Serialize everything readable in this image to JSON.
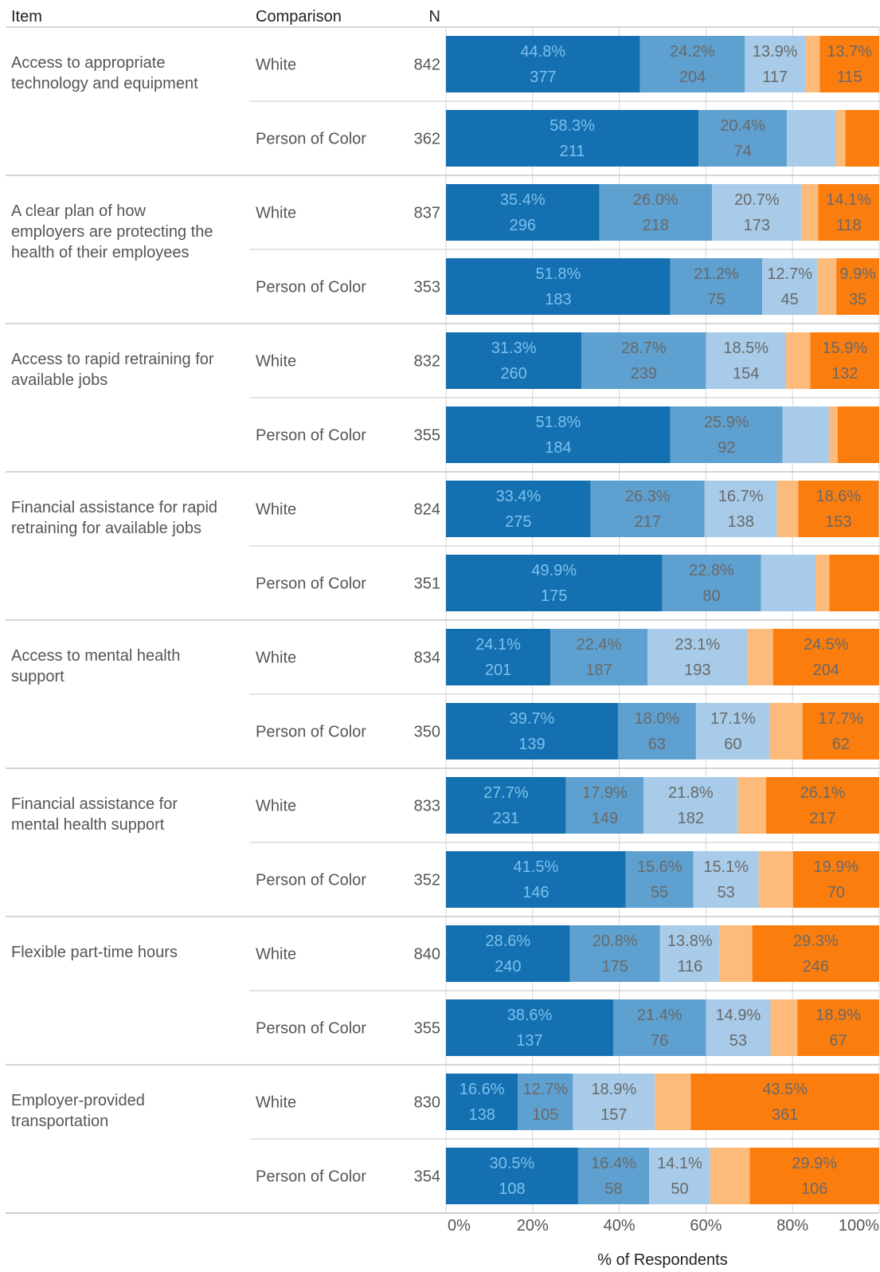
{
  "header": {
    "item": "Item",
    "comparison": "Comparison",
    "n": "N"
  },
  "colors": {
    "segments": [
      "#1470b0",
      "#5ea0cf",
      "#a7cbe8",
      "#fcbb7a",
      "#fb7d0e"
    ],
    "label_on_dark": "#7cc0ee",
    "label_on_light": "#696969",
    "gridline": "#d6d6d6",
    "divider": "#c8c8c8",
    "text": "#555555",
    "header_text": "#222222"
  },
  "chart_data": {
    "type": "bar",
    "orientation": "horizontal",
    "stacked": true,
    "xlabel": "% of Respondents",
    "xlim": [
      0,
      100
    ],
    "xticks": [
      "0%",
      "20%",
      "40%",
      "60%",
      "80%",
      "100%"
    ],
    "grid": true,
    "groups": [
      {
        "item": "Access to appropriate technology and equipment",
        "item_lines": [
          "Access to appropriate",
          "technology and equipment"
        ],
        "rows": [
          {
            "comparison": "White",
            "n": "842",
            "segments": [
              {
                "value": 44.8,
                "pct": "44.8%",
                "count": "377"
              },
              {
                "value": 24.2,
                "pct": "24.2%",
                "count": "204"
              },
              {
                "value": 13.9,
                "pct": "13.9%",
                "count": "117"
              },
              {
                "value": 3.4,
                "pct": "",
                "count": ""
              },
              {
                "value": 13.7,
                "pct": "13.7%",
                "count": "115"
              }
            ]
          },
          {
            "comparison": "Person of Color",
            "n": "362",
            "segments": [
              {
                "value": 58.3,
                "pct": "58.3%",
                "count": "211"
              },
              {
                "value": 20.4,
                "pct": "20.4%",
                "count": "74"
              },
              {
                "value": 11.3,
                "pct": "",
                "count": ""
              },
              {
                "value": 2.2,
                "pct": "",
                "count": ""
              },
              {
                "value": 7.8,
                "pct": "",
                "count": ""
              }
            ]
          }
        ]
      },
      {
        "item": "A clear plan of how employers are protecting the health of their employees",
        "item_lines": [
          "A clear plan of how",
          "employers are protecting the",
          "health of their employees"
        ],
        "rows": [
          {
            "comparison": "White",
            "n": "837",
            "segments": [
              {
                "value": 35.4,
                "pct": "35.4%",
                "count": "296"
              },
              {
                "value": 26.0,
                "pct": "26.0%",
                "count": "218"
              },
              {
                "value": 20.7,
                "pct": "20.7%",
                "count": "173"
              },
              {
                "value": 3.8,
                "pct": "",
                "count": ""
              },
              {
                "value": 14.1,
                "pct": "14.1%",
                "count": "118"
              }
            ]
          },
          {
            "comparison": "Person of Color",
            "n": "353",
            "segments": [
              {
                "value": 51.8,
                "pct": "51.8%",
                "count": "183"
              },
              {
                "value": 21.2,
                "pct": "21.2%",
                "count": "75"
              },
              {
                "value": 12.7,
                "pct": "12.7%",
                "count": "45"
              },
              {
                "value": 4.4,
                "pct": "",
                "count": ""
              },
              {
                "value": 9.9,
                "pct": "9.9%",
                "count": "35"
              }
            ]
          }
        ]
      },
      {
        "item": "Access to rapid retraining for available jobs",
        "item_lines": [
          "Access to rapid retraining for",
          "available jobs"
        ],
        "rows": [
          {
            "comparison": "White",
            "n": "832",
            "segments": [
              {
                "value": 31.3,
                "pct": "31.3%",
                "count": "260"
              },
              {
                "value": 28.7,
                "pct": "28.7%",
                "count": "239"
              },
              {
                "value": 18.5,
                "pct": "18.5%",
                "count": "154"
              },
              {
                "value": 5.6,
                "pct": "",
                "count": ""
              },
              {
                "value": 15.9,
                "pct": "15.9%",
                "count": "132"
              }
            ]
          },
          {
            "comparison": "Person of Color",
            "n": "355",
            "segments": [
              {
                "value": 51.8,
                "pct": "51.8%",
                "count": "184"
              },
              {
                "value": 25.9,
                "pct": "25.9%",
                "count": "92"
              },
              {
                "value": 10.7,
                "pct": "",
                "count": ""
              },
              {
                "value": 2.0,
                "pct": "",
                "count": ""
              },
              {
                "value": 9.6,
                "pct": "",
                "count": ""
              }
            ]
          }
        ]
      },
      {
        "item": "Financial assistance for rapid retraining for available jobs",
        "item_lines": [
          "Financial assistance for rapid",
          "retraining for available jobs"
        ],
        "rows": [
          {
            "comparison": "White",
            "n": "824",
            "segments": [
              {
                "value": 33.4,
                "pct": "33.4%",
                "count": "275"
              },
              {
                "value": 26.3,
                "pct": "26.3%",
                "count": "217"
              },
              {
                "value": 16.7,
                "pct": "16.7%",
                "count": "138"
              },
              {
                "value": 4.9,
                "pct": "",
                "count": ""
              },
              {
                "value": 18.6,
                "pct": "18.6%",
                "count": "153"
              }
            ]
          },
          {
            "comparison": "Person of Color",
            "n": "351",
            "segments": [
              {
                "value": 49.9,
                "pct": "49.9%",
                "count": "175"
              },
              {
                "value": 22.8,
                "pct": "22.8%",
                "count": "80"
              },
              {
                "value": 12.6,
                "pct": "",
                "count": ""
              },
              {
                "value": 3.2,
                "pct": "",
                "count": ""
              },
              {
                "value": 11.5,
                "pct": "",
                "count": ""
              }
            ]
          }
        ]
      },
      {
        "item": "Access to mental health support",
        "item_lines": [
          "Access to mental health",
          "support"
        ],
        "rows": [
          {
            "comparison": "White",
            "n": "834",
            "segments": [
              {
                "value": 24.1,
                "pct": "24.1%",
                "count": "201"
              },
              {
                "value": 22.4,
                "pct": "22.4%",
                "count": "187"
              },
              {
                "value": 23.1,
                "pct": "23.1%",
                "count": "193"
              },
              {
                "value": 5.9,
                "pct": "",
                "count": ""
              },
              {
                "value": 24.5,
                "pct": "24.5%",
                "count": "204"
              }
            ]
          },
          {
            "comparison": "Person of Color",
            "n": "350",
            "segments": [
              {
                "value": 39.7,
                "pct": "39.7%",
                "count": "139"
              },
              {
                "value": 18.0,
                "pct": "18.0%",
                "count": "63"
              },
              {
                "value": 17.1,
                "pct": "17.1%",
                "count": "60"
              },
              {
                "value": 7.5,
                "pct": "",
                "count": ""
              },
              {
                "value": 17.7,
                "pct": "17.7%",
                "count": "62"
              }
            ]
          }
        ]
      },
      {
        "item": "Financial assistance for mental health support",
        "item_lines": [
          "Financial assistance for",
          "mental health support"
        ],
        "rows": [
          {
            "comparison": "White",
            "n": "833",
            "segments": [
              {
                "value": 27.7,
                "pct": "27.7%",
                "count": "231"
              },
              {
                "value": 17.9,
                "pct": "17.9%",
                "count": "149"
              },
              {
                "value": 21.8,
                "pct": "21.8%",
                "count": "182"
              },
              {
                "value": 6.5,
                "pct": "",
                "count": ""
              },
              {
                "value": 26.1,
                "pct": "26.1%",
                "count": "217"
              }
            ]
          },
          {
            "comparison": "Person of Color",
            "n": "352",
            "segments": [
              {
                "value": 41.5,
                "pct": "41.5%",
                "count": "146"
              },
              {
                "value": 15.6,
                "pct": "15.6%",
                "count": "55"
              },
              {
                "value": 15.1,
                "pct": "15.1%",
                "count": "53"
              },
              {
                "value": 7.9,
                "pct": "",
                "count": ""
              },
              {
                "value": 19.9,
                "pct": "19.9%",
                "count": "70"
              }
            ]
          }
        ]
      },
      {
        "item": "Flexible part-time hours",
        "item_lines": [
          "Flexible part-time hours"
        ],
        "rows": [
          {
            "comparison": "White",
            "n": "840",
            "segments": [
              {
                "value": 28.6,
                "pct": "28.6%",
                "count": "240"
              },
              {
                "value": 20.8,
                "pct": "20.8%",
                "count": "175"
              },
              {
                "value": 13.8,
                "pct": "13.8%",
                "count": "116"
              },
              {
                "value": 7.5,
                "pct": "",
                "count": ""
              },
              {
                "value": 29.3,
                "pct": "29.3%",
                "count": "246"
              }
            ]
          },
          {
            "comparison": "Person of Color",
            "n": "355",
            "segments": [
              {
                "value": 38.6,
                "pct": "38.6%",
                "count": "137"
              },
              {
                "value": 21.4,
                "pct": "21.4%",
                "count": "76"
              },
              {
                "value": 14.9,
                "pct": "14.9%",
                "count": "53"
              },
              {
                "value": 6.2,
                "pct": "",
                "count": ""
              },
              {
                "value": 18.9,
                "pct": "18.9%",
                "count": "67"
              }
            ]
          }
        ]
      },
      {
        "item": "Employer-provided transportation",
        "item_lines": [
          "Employer-provided",
          "transportation"
        ],
        "rows": [
          {
            "comparison": "White",
            "n": "830",
            "segments": [
              {
                "value": 16.6,
                "pct": "16.6%",
                "count": "138"
              },
              {
                "value": 12.7,
                "pct": "12.7%",
                "count": "105"
              },
              {
                "value": 18.9,
                "pct": "18.9%",
                "count": "157"
              },
              {
                "value": 8.3,
                "pct": "",
                "count": ""
              },
              {
                "value": 43.5,
                "pct": "43.5%",
                "count": "361"
              }
            ]
          },
          {
            "comparison": "Person of Color",
            "n": "354",
            "segments": [
              {
                "value": 30.5,
                "pct": "30.5%",
                "count": "108"
              },
              {
                "value": 16.4,
                "pct": "16.4%",
                "count": "58"
              },
              {
                "value": 14.1,
                "pct": "14.1%",
                "count": "50"
              },
              {
                "value": 9.1,
                "pct": "",
                "count": ""
              },
              {
                "value": 29.9,
                "pct": "29.9%",
                "count": "106"
              }
            ]
          }
        ]
      }
    ]
  }
}
